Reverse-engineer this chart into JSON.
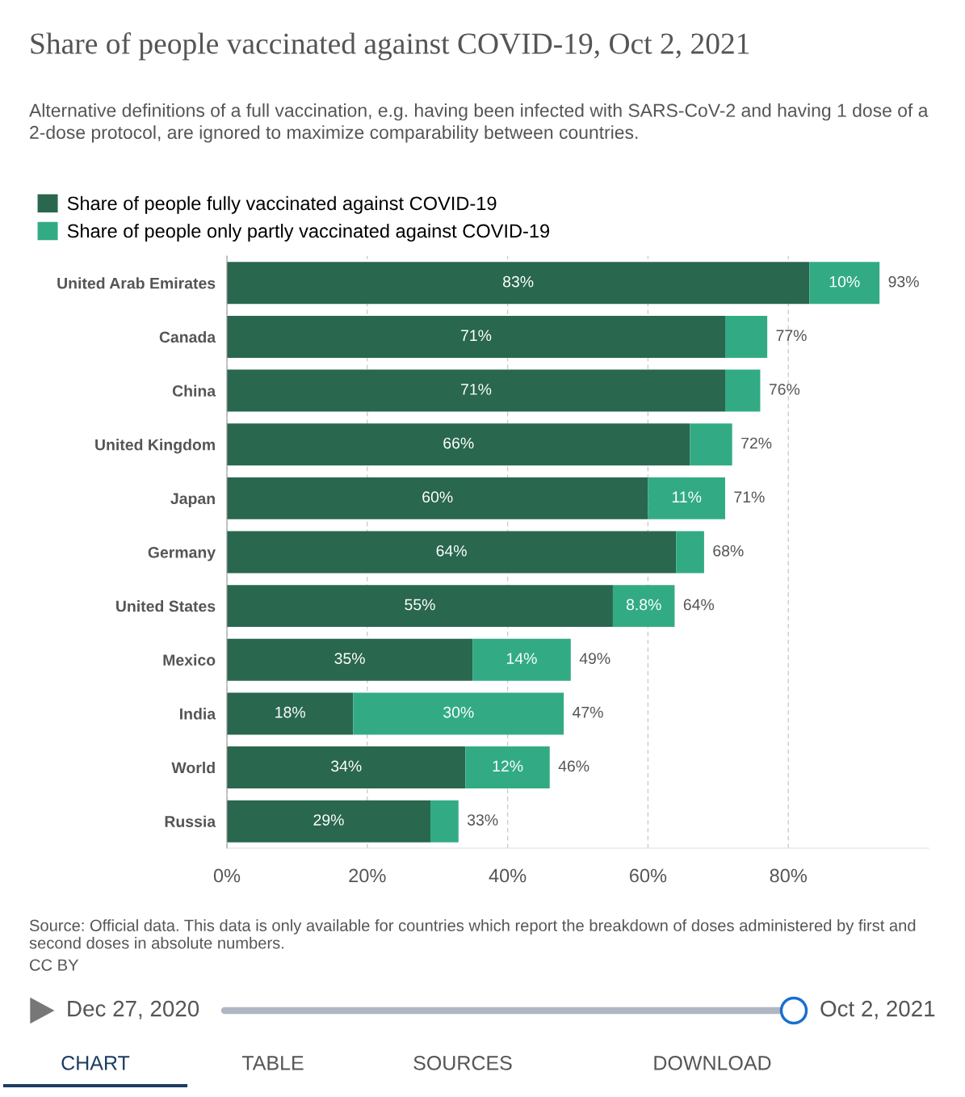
{
  "chart_data": {
    "type": "bar",
    "orientation": "horizontal",
    "stacked": true,
    "title": "Share of people vaccinated against COVID-19, Oct 2, 2021",
    "subtitle": "Alternative definitions of a full vaccination, e.g. having been infected with SARS-CoV-2 and having 1 dose of a 2-dose protocol, are ignored to maximize comparability between countries.",
    "categories": [
      "United Arab Emirates",
      "Canada",
      "China",
      "United Kingdom",
      "Japan",
      "Germany",
      "United States",
      "Mexico",
      "India",
      "World",
      "Russia"
    ],
    "series": [
      {
        "name": "Share of people fully vaccinated against COVID-19",
        "color": "#29674f",
        "values": [
          83,
          71,
          71,
          66,
          60,
          64,
          55,
          35,
          18,
          34,
          29
        ],
        "value_labels": [
          "83%",
          "71%",
          "71%",
          "66%",
          "60%",
          "64%",
          "55%",
          "35%",
          "18%",
          "34%",
          "29%"
        ]
      },
      {
        "name": "Share of people only partly vaccinated against COVID-19",
        "color": "#32ab85",
        "values": [
          10,
          6,
          5,
          6,
          11,
          4,
          8.8,
          14,
          30,
          12,
          4
        ],
        "value_labels": [
          "10%",
          null,
          null,
          null,
          "11%",
          null,
          "8.8%",
          "14%",
          "30%",
          "12%",
          null
        ]
      }
    ],
    "totals": [
      "93%",
      "77%",
      "76%",
      "72%",
      "71%",
      "68%",
      "64%",
      "49%",
      "47%",
      "46%",
      "33%"
    ],
    "xlim": [
      0,
      100
    ],
    "xticks": [
      {
        "value": 0,
        "label": "0%"
      },
      {
        "value": 20,
        "label": "20%"
      },
      {
        "value": 40,
        "label": "40%"
      },
      {
        "value": 60,
        "label": "60%"
      },
      {
        "value": 80,
        "label": "80%"
      }
    ],
    "grid": "x",
    "legend": "top left",
    "annotations": [
      "Source: Official data. This data is only available for countries which report the breakdown of doses administered by first and second doses in absolute numbers.",
      "CC BY",
      "Dec 27, 2020",
      "Oct 2, 2021",
      "CHART",
      "TABLE",
      "SOURCES",
      "DOWNLOAD"
    ]
  }
}
